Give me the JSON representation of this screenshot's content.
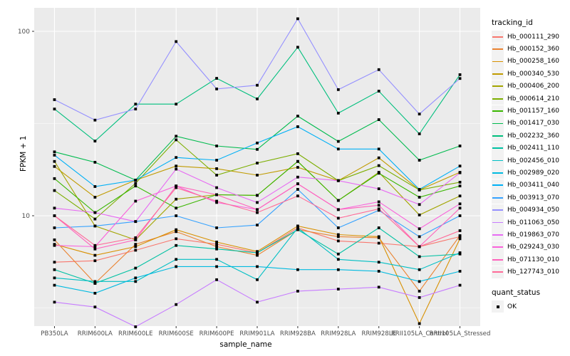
{
  "chart_data": {
    "type": "line",
    "title": "",
    "xlabel": "sample_name",
    "ylabel": "FPKM + 1",
    "y_scale": "log10",
    "y_ticks": [
      10,
      100
    ],
    "y_minor_ticks": [
      3.162,
      31.62
    ],
    "ylim": [
      2.4,
      135
    ],
    "grid": true,
    "panel_bg": "#EBEBEB",
    "grid_color": "#FFFFFF",
    "tick_label_color": "#4D4D4D",
    "marker": "black-square",
    "legend_position": "right",
    "legend_title": "tracking_id",
    "legend2": {
      "title": "quant_status",
      "items": [
        "OK"
      ]
    },
    "categories": [
      "PB350LA",
      "RRIM600LA",
      "RRIM600LE",
      "RRIM600SE",
      "RRIM600PE",
      "RRIM901LA",
      "RRIM928BA",
      "RRIM928LA",
      "RRIM928LE",
      "RRII105LA_Control",
      "RRII105LA_Stressed"
    ],
    "series": [
      {
        "name": "Hb_000111_290",
        "color": "#F8766D",
        "values": [
          5.6,
          5.7,
          6.5,
          7.5,
          7.0,
          6.3,
          8.6,
          7.3,
          7.1,
          6.8,
          7.7
        ]
      },
      {
        "name": "Hb_000152_360",
        "color": "#EA8331",
        "values": [
          7.4,
          4.3,
          7.0,
          8.2,
          6.8,
          6.1,
          8.4,
          7.7,
          7.6,
          3.9,
          7.8
        ]
      },
      {
        "name": "Hb_000258_160",
        "color": "#D89000",
        "values": [
          7.0,
          6.1,
          6.8,
          8.4,
          7.2,
          6.4,
          8.8,
          7.9,
          7.7,
          2.6,
          7.5
        ]
      },
      {
        "name": "Hb_000340_530",
        "color": "#C09B00",
        "values": [
          18.5,
          12.6,
          15.6,
          18.6,
          18.0,
          16.6,
          18.3,
          15.5,
          20.6,
          13.8,
          17.2
        ]
      },
      {
        "name": "Hb_000406_200",
        "color": "#A3A500",
        "values": [
          19.7,
          8.8,
          7.4,
          12.3,
          13.0,
          12.9,
          19.7,
          12.1,
          17.2,
          10.1,
          12.8
        ]
      },
      {
        "name": "Hb_000614_210",
        "color": "#7CAE00",
        "values": [
          13.7,
          9.6,
          15.0,
          25.8,
          16.6,
          19.3,
          21.7,
          15.5,
          18.7,
          13.8,
          15.2
        ]
      },
      {
        "name": "Hb_001157_160",
        "color": "#39B600",
        "values": [
          15.9,
          10.4,
          14.5,
          11.0,
          13.0,
          12.9,
          19.7,
          12.1,
          17.0,
          12.6,
          14.5
        ]
      },
      {
        "name": "Hb_001417_030",
        "color": "#00BB4E",
        "values": [
          22.2,
          19.5,
          15.6,
          27.0,
          23.9,
          22.9,
          34.7,
          25.3,
          33.2,
          20.0,
          23.9
        ]
      },
      {
        "name": "Hb_002232_360",
        "color": "#00BF7D",
        "values": [
          37.9,
          25.4,
          40.3,
          40.3,
          55.6,
          43.0,
          82.0,
          36.0,
          47.4,
          27.8,
          58.2
        ]
      },
      {
        "name": "Hb_002411_110",
        "color": "#00C1A3",
        "values": [
          5.1,
          4.3,
          5.2,
          6.9,
          6.6,
          6.3,
          8.4,
          6.2,
          8.6,
          6.0,
          6.2
        ]
      },
      {
        "name": "Hb_002456_010",
        "color": "#00BFC4",
        "values": [
          4.6,
          4.4,
          4.4,
          5.8,
          5.8,
          4.5,
          8.6,
          5.8,
          5.6,
          5.1,
          6.3
        ]
      },
      {
        "name": "Hb_002989_020",
        "color": "#00BAE0",
        "values": [
          4.2,
          3.8,
          4.6,
          5.3,
          5.3,
          5.3,
          5.1,
          5.1,
          5.0,
          4.4,
          5.0
        ]
      },
      {
        "name": "Hb_003411_040",
        "color": "#00B0F6",
        "values": [
          21.3,
          14.4,
          15.6,
          20.7,
          20.0,
          24.8,
          30.4,
          23.0,
          23.0,
          13.9,
          18.6
        ]
      },
      {
        "name": "Hb_003913_070",
        "color": "#35A2FF",
        "values": [
          8.6,
          8.8,
          9.3,
          10.0,
          8.6,
          8.9,
          13.9,
          8.6,
          10.7,
          7.7,
          10.0
        ]
      },
      {
        "name": "Hb_004934_050",
        "color": "#9590FF",
        "values": [
          42.6,
          33.0,
          37.9,
          88.0,
          48.7,
          51.0,
          117.0,
          48.3,
          62.0,
          35.6,
          55.5
        ]
      },
      {
        "name": "Hb_011063_050",
        "color": "#C77CFF",
        "values": [
          3.4,
          3.2,
          2.5,
          3.3,
          4.5,
          3.4,
          3.9,
          4.0,
          4.1,
          3.6,
          4.2
        ]
      },
      {
        "name": "Hb_019863_070",
        "color": "#E76BF3",
        "values": [
          11.0,
          10.4,
          9.3,
          17.9,
          14.2,
          11.8,
          16.2,
          15.5,
          14.0,
          11.5,
          17.1
        ]
      },
      {
        "name": "Hb_029243_030",
        "color": "#FA62DB",
        "values": [
          6.9,
          6.8,
          12.0,
          14.5,
          11.8,
          10.8,
          14.9,
          10.8,
          11.9,
          8.5,
          11.6
        ]
      },
      {
        "name": "Hb_071130_010",
        "color": "#FF62BC",
        "values": [
          10.0,
          6.6,
          7.4,
          14.5,
          13.0,
          10.8,
          14.9,
          10.8,
          11.4,
          6.8,
          11.0
        ]
      },
      {
        "name": "Hb_127743_010",
        "color": "#FF6A98",
        "values": [
          10.0,
          6.9,
          7.6,
          14.2,
          12.0,
          10.4,
          12.8,
          9.7,
          10.9,
          6.8,
          8.3
        ]
      }
    ]
  }
}
